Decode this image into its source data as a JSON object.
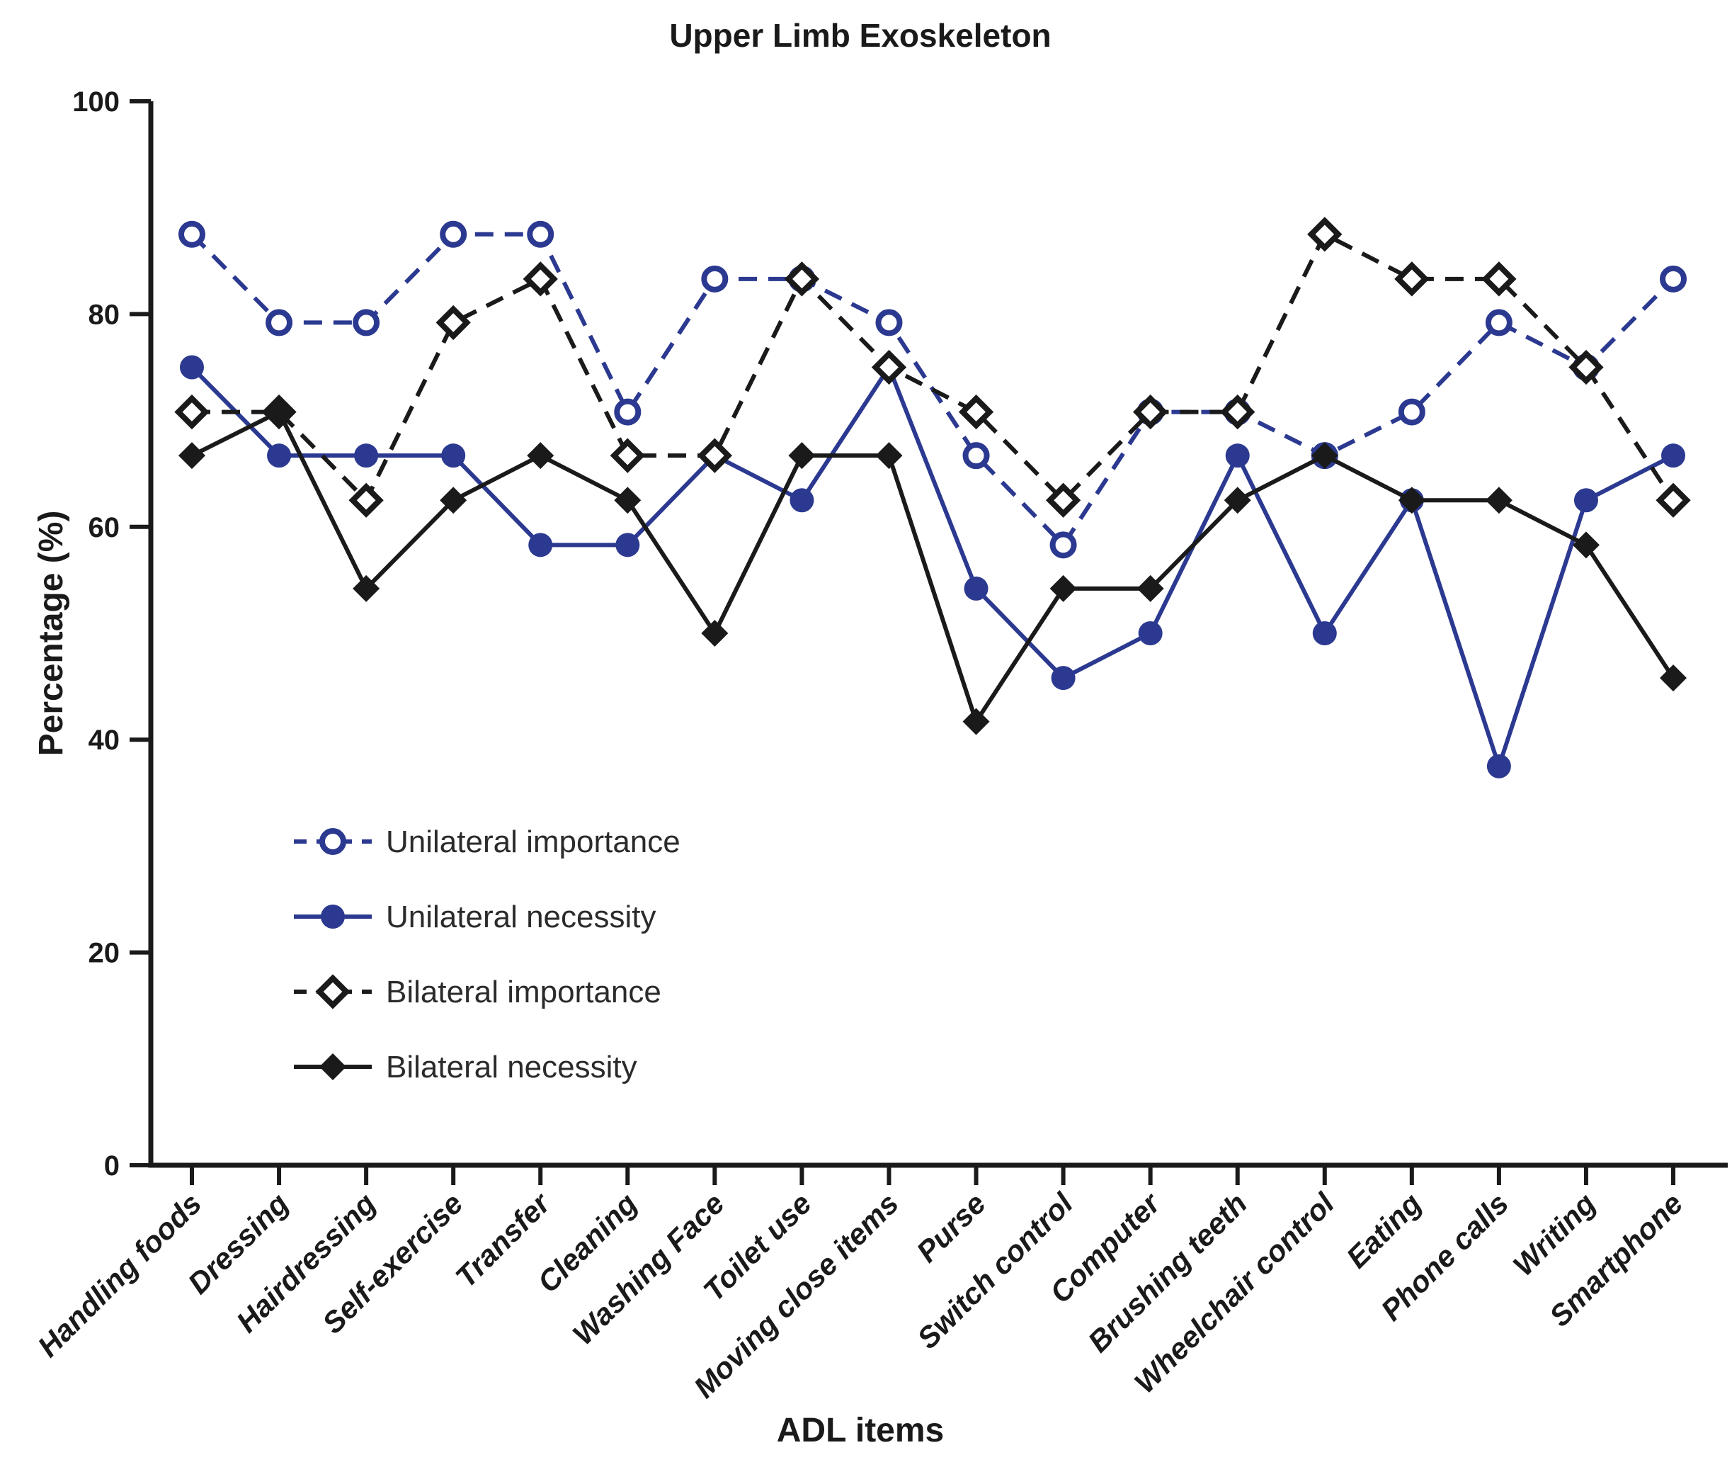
{
  "chart_data": {
    "type": "line",
    "title": "Upper Limb Exoskeleton",
    "xlabel": "ADL items",
    "ylabel": "Percentage (%)",
    "ylim": [
      0,
      100
    ],
    "yticks": [
      0,
      20,
      40,
      60,
      80,
      100
    ],
    "grid": false,
    "legend_position": "inside-lower-left",
    "categories": [
      "Handling foods",
      "Dressing",
      "Hairdressing",
      "Self-exercise",
      "Transfer",
      "Cleaning",
      "Washing Face",
      "Toilet use",
      "Moving close items",
      "Purse",
      "Switch control",
      "Computer",
      "Brushing teeth",
      "Wheelchair control",
      "Eating",
      "Phone calls",
      "Writing",
      "Smartphone"
    ],
    "series": [
      {
        "name": "Unilateral importance",
        "color": "#2B3990",
        "line": "dashed",
        "marker": "open-circle",
        "values": [
          87.5,
          79.2,
          79.2,
          87.5,
          87.5,
          70.8,
          83.3,
          83.3,
          79.2,
          66.7,
          58.3,
          70.8,
          70.8,
          66.7,
          70.8,
          79.2,
          75.0,
          83.3
        ]
      },
      {
        "name": "Unilateral necessity",
        "color": "#2B3990",
        "line": "solid",
        "marker": "filled-circle",
        "values": [
          75.0,
          66.7,
          66.7,
          66.7,
          58.3,
          58.3,
          66.7,
          62.5,
          75.0,
          54.2,
          45.8,
          50.0,
          66.7,
          50.0,
          62.5,
          37.5,
          62.5,
          66.7
        ]
      },
      {
        "name": "Bilateral importance",
        "color": "#1A1A1A",
        "line": "dashed",
        "marker": "open-diamond",
        "values": [
          70.8,
          70.8,
          62.5,
          79.2,
          83.3,
          66.7,
          66.7,
          83.3,
          75.0,
          70.8,
          62.5,
          70.8,
          70.8,
          87.5,
          83.3,
          83.3,
          75.0,
          62.5
        ]
      },
      {
        "name": "Bilateral necessity",
        "color": "#1A1A1A",
        "line": "solid",
        "marker": "filled-diamond",
        "values": [
          66.7,
          70.8,
          54.2,
          62.5,
          66.7,
          62.5,
          50.0,
          66.7,
          66.7,
          41.7,
          54.2,
          54.2,
          62.5,
          66.7,
          62.5,
          62.5,
          58.3,
          45.8
        ]
      }
    ]
  }
}
